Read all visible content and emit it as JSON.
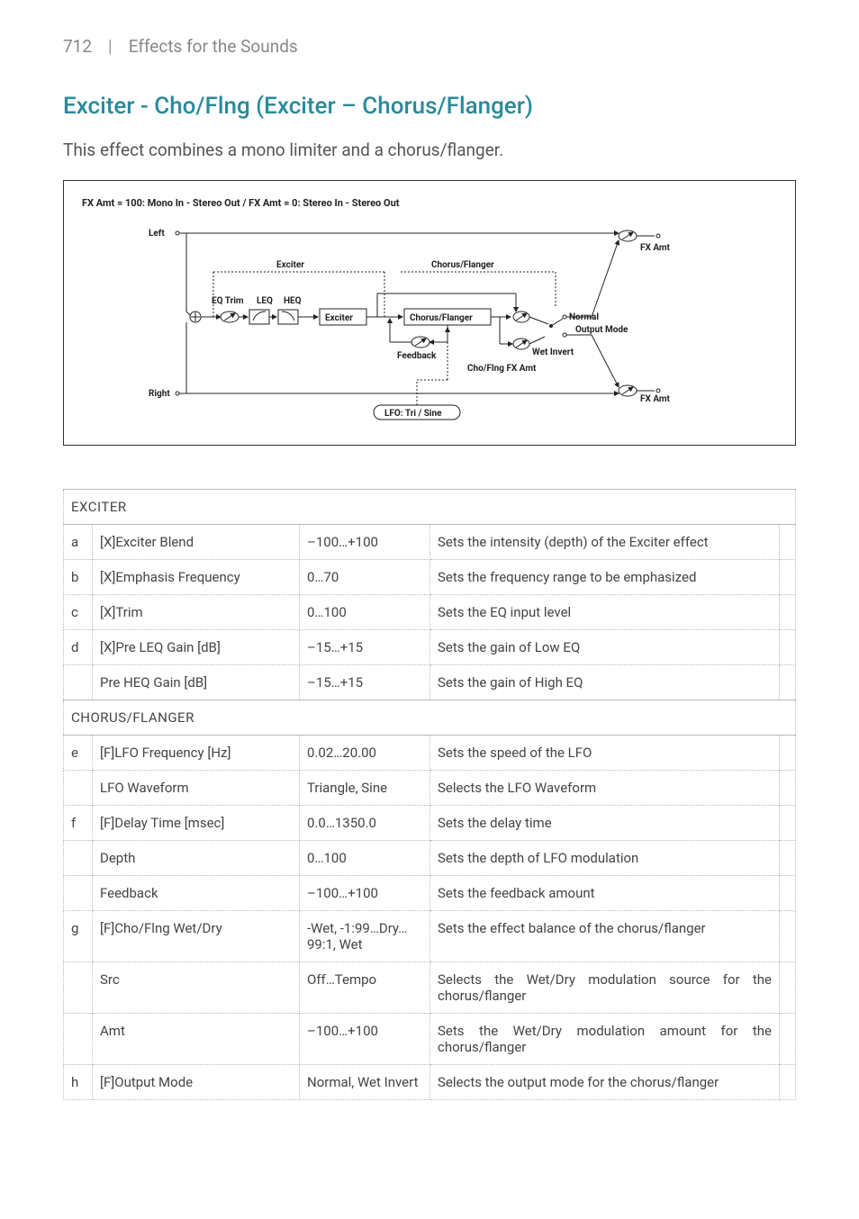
{
  "header": {
    "page": "712",
    "pipe": "|",
    "crumb": "Effects for the Sounds"
  },
  "title": "Exciter - Cho/Flng (Exciter – Chorus/Flanger)",
  "desc": "This effect combines a mono limiter and a chorus/flanger.",
  "diagram": {
    "caption": "FX Amt = 100: Mono In - Stereo Out  /  FX Amt = 0: Stereo In - Stereo Out",
    "left": "Left",
    "right": "Right",
    "exciter_lbl": "Exciter",
    "choflng_lbl": "Chorus/Flanger",
    "eqtrim": "EQ Trim",
    "leq": "LEQ",
    "heq": "HEQ",
    "exciter_box": "Exciter",
    "choflng_box": "Chorus/Flanger",
    "feedback": "Feedback",
    "lfo": "LFO: Tri / Sine",
    "fxamt": "FX Amt",
    "normal": "Normal",
    "outmode": "Output Mode",
    "wetinv": "Wet Invert",
    "chofxamt": "Cho/Flng FX Amt"
  },
  "sections": [
    {
      "name": "EXCITER",
      "rows": [
        {
          "k": "a",
          "p": "[X]Exciter Blend",
          "r": "–100…+100",
          "d": "Sets the intensity (depth) of the Exciter effect"
        },
        {
          "k": "b",
          "p": "[X]Emphasis Frequency",
          "r": "0…70",
          "d": "Sets the frequency range to be emphasized"
        },
        {
          "k": "c",
          "p": "[X]Trim",
          "r": "0…100",
          "d": "Sets the EQ input level"
        },
        {
          "k": "d",
          "p": "[X]Pre LEQ Gain [dB]",
          "r": "–15…+15",
          "d": "Sets the gain of Low EQ"
        },
        {
          "k": "",
          "p": "Pre HEQ Gain [dB]",
          "r": "–15…+15",
          "d": "Sets the gain of High EQ"
        }
      ]
    },
    {
      "name": "CHORUS/FLANGER",
      "rows": [
        {
          "k": "e",
          "p": "[F]LFO Frequency [Hz]",
          "r": "0.02…20.00",
          "d": "Sets the speed of the LFO"
        },
        {
          "k": "",
          "p": "LFO Waveform",
          "r": "Triangle, Sine",
          "d": "Selects the LFO Waveform"
        },
        {
          "k": "f",
          "p": "[F]Delay Time [msec]",
          "r": "0.0…1350.0",
          "d": "Sets the delay time"
        },
        {
          "k": "",
          "p": "Depth",
          "r": "0…100",
          "d": "Sets the depth of LFO modulation"
        },
        {
          "k": "",
          "p": "Feedback",
          "r": "–100…+100",
          "d": "Sets the feedback amount"
        },
        {
          "k": "g",
          "p": "[F]Cho/Flng Wet/Dry",
          "r": "-Wet, -1:99…Dry…99:1, Wet",
          "d": "Sets the effect balance of the chorus/flanger"
        },
        {
          "k": "",
          "p": "Src",
          "r": "Off…Tempo",
          "d": "Selects the Wet/Dry modulation source for the chorus/flanger"
        },
        {
          "k": "",
          "p": "Amt",
          "r": "–100…+100",
          "d": "Sets the Wet/Dry modulation amount for the chorus/flanger"
        },
        {
          "k": "h",
          "p": "[F]Output Mode",
          "r": "Normal, Wet Invert",
          "d": "Selects the output mode for the chorus/flanger"
        }
      ]
    }
  ]
}
